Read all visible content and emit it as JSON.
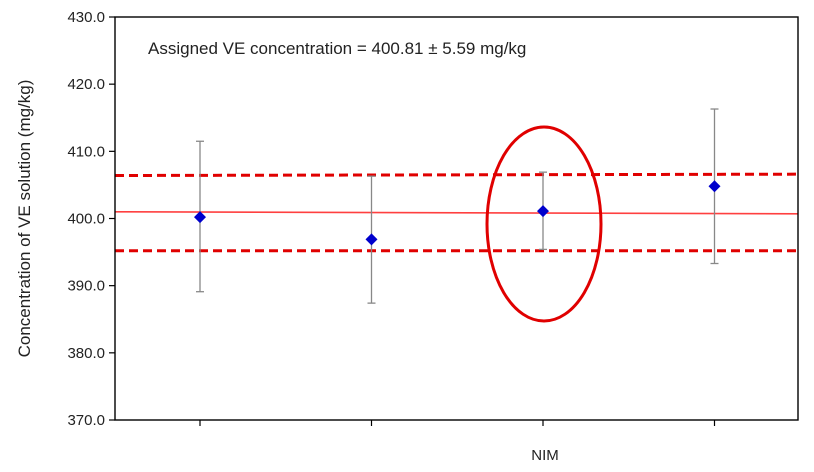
{
  "chart_data": {
    "type": "scatter",
    "title": "",
    "xlabel": "",
    "ylabel": "Concentration of VE solution (mg/kg)",
    "ylim": [
      370,
      430
    ],
    "yticks": [
      370,
      380,
      390,
      400,
      410,
      420,
      430
    ],
    "ytick_labels": [
      "370.0",
      "380.0",
      "390.0",
      "400.0",
      "410.0",
      "420.0",
      "430.0"
    ],
    "grid": false,
    "annotation": "Assigned VE concentration = 400.81 ± 5.59 mg/kg",
    "assigned_value": 400.81,
    "assigned_uncertainty": 5.59,
    "reference_lines": {
      "assigned": {
        "y_start": 401.0,
        "y_end": 400.7,
        "color": "#ff4040",
        "style": "solid"
      },
      "upper_limit": {
        "y_start": 406.4,
        "y_end": 406.6,
        "color": "#e00000",
        "style": "dashed"
      },
      "lower_limit": {
        "y_start": 395.2,
        "y_end": 395.2,
        "color": "#e00000",
        "style": "dashed"
      }
    },
    "categories": [
      "",
      "",
      "NIM",
      ""
    ],
    "points": [
      {
        "x": 1,
        "y": 400.2,
        "err_low": 389.1,
        "err_high": 411.5
      },
      {
        "x": 2,
        "y": 396.9,
        "err_low": 387.4,
        "err_high": 406.3
      },
      {
        "x": 3,
        "y": 401.1,
        "err_low": 395.4,
        "err_high": 406.9
      },
      {
        "x": 4,
        "y": 404.8,
        "err_low": 393.3,
        "err_high": 416.3
      }
    ],
    "highlight": {
      "category": "NIM",
      "shape": "ellipse",
      "color": "#e00000"
    },
    "marker_color": "#0000cc",
    "errorbar_color": "#888888"
  }
}
